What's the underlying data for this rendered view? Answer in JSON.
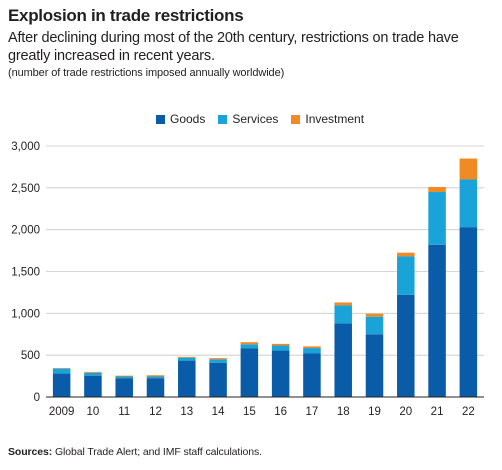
{
  "header": {
    "title": "Explosion in trade restrictions",
    "subtitle": "After declining during most of the 20th century, restrictions on trade have greatly increased in recent years.",
    "note": "(number of trade restrictions imposed annually worldwide)"
  },
  "footer": {
    "source_label": "Sources:",
    "source_text": " Global Trade Alert; and IMF staff calculations."
  },
  "colors": {
    "goods": "#0b5ca8",
    "services": "#1aa3d9",
    "investment": "#f08a24",
    "gridline": "#c8c8c8",
    "axis": "#231f20"
  },
  "chart_data": {
    "type": "bar",
    "stacked": true,
    "categories": [
      "2009",
      "10",
      "11",
      "12",
      "13",
      "14",
      "15",
      "16",
      "17",
      "18",
      "19",
      "20",
      "21",
      "22"
    ],
    "series": [
      {
        "name": "Goods",
        "values": [
          280,
          255,
          225,
          225,
          435,
          410,
          580,
          555,
          520,
          880,
          750,
          1220,
          1820,
          2030
        ]
      },
      {
        "name": "Services",
        "values": [
          60,
          35,
          20,
          20,
          35,
          40,
          50,
          60,
          65,
          215,
          210,
          460,
          630,
          570
        ]
      },
      {
        "name": "Investment",
        "values": [
          5,
          10,
          10,
          15,
          10,
          15,
          25,
          20,
          20,
          35,
          35,
          45,
          60,
          250
        ]
      }
    ],
    "ylim": [
      0,
      3000
    ],
    "yticks": [
      0,
      500,
      1000,
      1500,
      2000,
      2500,
      3000
    ],
    "ytick_labels": [
      "0",
      "500",
      "1,000",
      "1,500",
      "2,000",
      "2,500",
      "3,000"
    ],
    "grid": "horizontal",
    "legend_position": "top"
  }
}
